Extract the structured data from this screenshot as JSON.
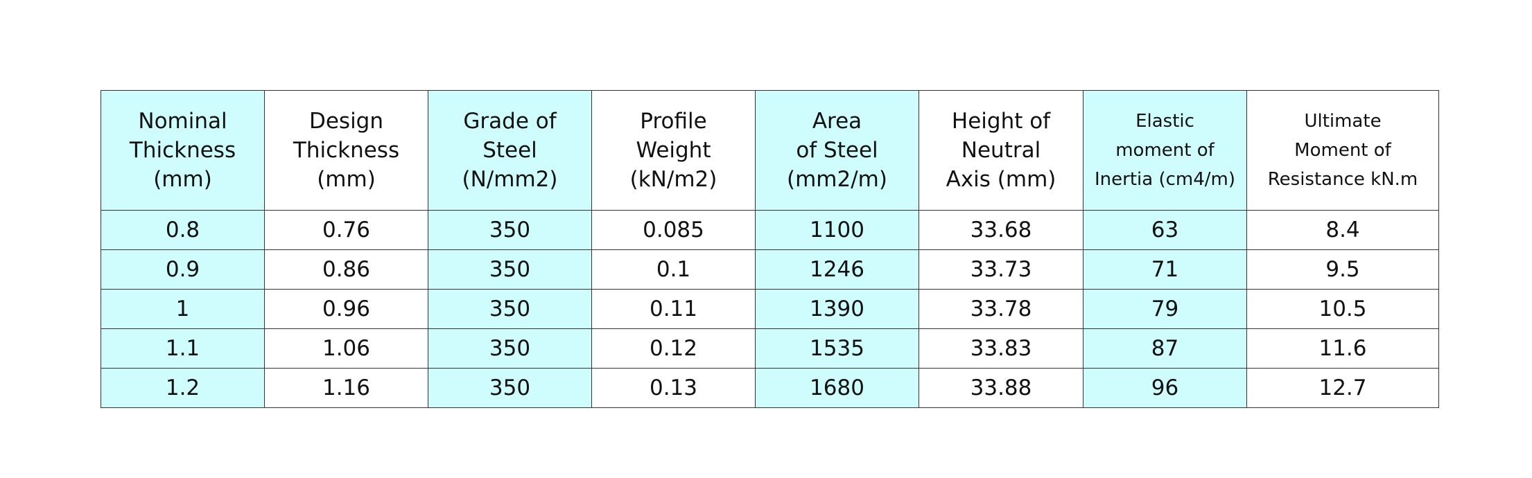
{
  "table": {
    "header": [
      [
        "Nominal",
        "Thickness",
        "(mm)"
      ],
      [
        "Design",
        "Thickness",
        "(mm)"
      ],
      [
        "Grade of",
        "Steel",
        "(N/mm2)"
      ],
      [
        "Profile",
        "Weight",
        "(kN/m2)"
      ],
      [
        "Area",
        "of Steel",
        "(mm2/m)"
      ],
      [
        "Height of",
        "Neutral",
        "Axis (mm)"
      ],
      [
        "Elastic",
        "moment of",
        "Inertia (cm4/m)"
      ],
      [
        "Ultimate",
        "Moment of",
        "Resistance kN.m"
      ]
    ],
    "rows": [
      [
        "0.8",
        "0.76",
        "350",
        "0.085",
        "1100",
        "33.68",
        "63",
        "8.4"
      ],
      [
        "0.9",
        "0.86",
        "350",
        "0.1",
        "1246",
        "33.73",
        "71",
        "9.5"
      ],
      [
        "1",
        "0.96",
        "350",
        "0.11",
        "1390",
        "33.78",
        "79",
        "10.5"
      ],
      [
        "1.1",
        "1.06",
        "350",
        "0.12",
        "1535",
        "33.83",
        "87",
        "11.6"
      ],
      [
        "1.2",
        "1.16",
        "350",
        "0.13",
        "1680",
        "33.88",
        "96",
        "12.7"
      ]
    ]
  }
}
